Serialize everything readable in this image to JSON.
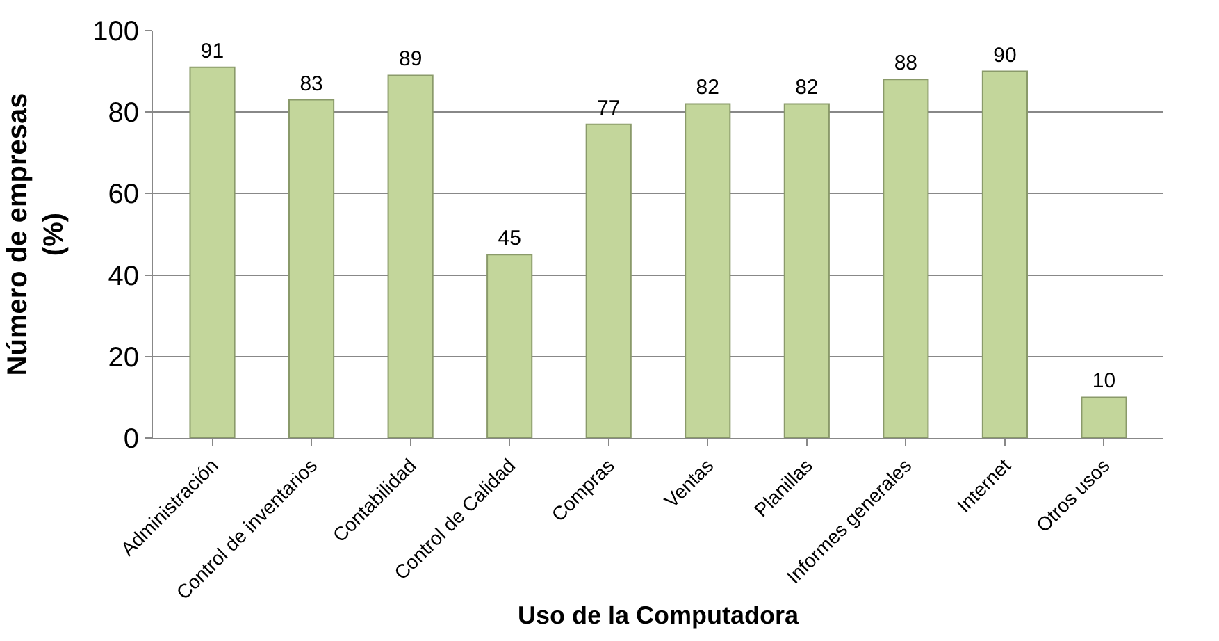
{
  "chart_data": {
    "type": "bar",
    "xlabel": "Uso de la Computadora",
    "ylabel": "Número de empresas (%)",
    "categories": [
      "Administración",
      "Control de inventarios",
      "Contabilidad",
      "Control de Calidad",
      "Compras",
      "Ventas",
      "Planillas",
      "Informes generales",
      "Internet",
      "Otros usos"
    ],
    "values": [
      91,
      83,
      89,
      45,
      77,
      82,
      82,
      88,
      90,
      10
    ],
    "color": "#c3d69b",
    "ylim": [
      0,
      100
    ],
    "yticks": [
      0,
      20,
      40,
      60,
      80,
      100
    ],
    "grid": "y",
    "data_labels": true,
    "legend": false
  }
}
